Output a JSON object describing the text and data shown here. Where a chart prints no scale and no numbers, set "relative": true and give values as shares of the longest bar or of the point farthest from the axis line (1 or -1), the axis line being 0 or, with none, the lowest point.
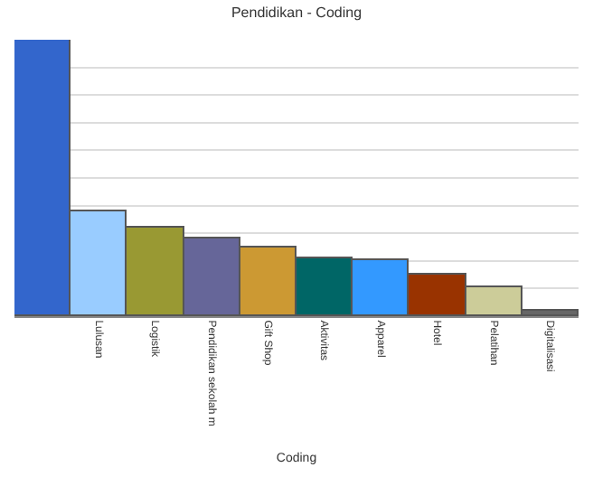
{
  "chart_data": {
    "type": "bar",
    "title": "Pendidikan - Coding",
    "xlabel": "Coding",
    "relative": true,
    "grid": "y",
    "categories": [
      null,
      "Lulusan",
      "Logistik",
      "Pendidikan sekolah m",
      "Gift Shop",
      "Aktivitas",
      "Apparel",
      "Hotel",
      "Pelatihan",
      "Digitalisasi"
    ],
    "values": [
      1,
      0.38,
      0.32,
      0.28,
      0.25,
      0.21,
      0.2,
      0.15,
      0.105,
      0.02
    ],
    "colors": [
      "#3366cc",
      "#99ccff",
      "#999933",
      "#666699",
      "#cc9933",
      "#006666",
      "#3399ff",
      "#993300",
      "#cccc99",
      "#666666"
    ]
  }
}
